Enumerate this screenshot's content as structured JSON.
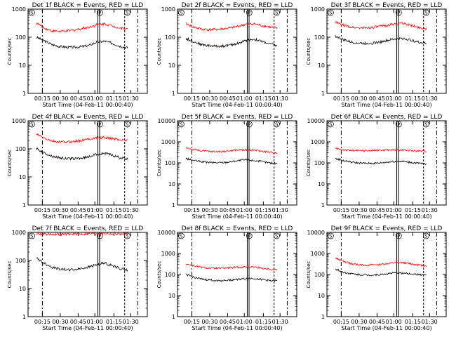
{
  "chart_data": [
    {
      "type": "line",
      "title": "Det 1f BLACK = Events, RED = LLD",
      "xlabel": "Start Time (04-Feb-11 00:00:40)",
      "ylabel": "Counts/sec",
      "y_scale": "log",
      "ylim": [
        1,
        1000
      ],
      "x_ticks": [
        "00:15",
        "00:30",
        "00:45",
        "01:00",
        "01:15",
        "01:30"
      ],
      "y_ticks": [
        "1",
        "10",
        "100",
        "1000"
      ],
      "markers": [
        "S",
        "P",
        "S"
      ],
      "series": [
        {
          "name": "BLACK = Events",
          "color": "#000000",
          "values": [
            100,
            75,
            55,
            47,
            44,
            44,
            46,
            52,
            68,
            72,
            60,
            48,
            42
          ]
        },
        {
          "name": "RED = LLD",
          "color": "#ff0000",
          "values": [
            320,
            210,
            170,
            160,
            165,
            180,
            205,
            230,
            280,
            300,
            250,
            210,
            195
          ]
        }
      ]
    },
    {
      "type": "line",
      "title": "Det 2f BLACK = Events, RED = LLD",
      "xlabel": "Start Time (04-Feb-11 00:00:40)",
      "ylabel": "Counts/sec",
      "y_scale": "log",
      "ylim": [
        1,
        1000
      ],
      "x_ticks": [
        "00:15",
        "00:30",
        "00:45",
        "01:00",
        "01:15",
        "01:30"
      ],
      "y_ticks": [
        "1",
        "10",
        "100",
        "1000"
      ],
      "markers": [
        "S",
        "P",
        "S"
      ],
      "series": [
        {
          "name": "BLACK = Events",
          "color": "#000000",
          "values": [
            90,
            70,
            55,
            50,
            48,
            49,
            53,
            62,
            78,
            85,
            70,
            58,
            50
          ]
        },
        {
          "name": "RED = LLD",
          "color": "#ff0000",
          "values": [
            300,
            230,
            195,
            185,
            190,
            200,
            215,
            250,
            290,
            300,
            260,
            230,
            210
          ]
        }
      ]
    },
    {
      "type": "line",
      "title": "Det 3f BLACK = Events, RED = LLD",
      "xlabel": "Start Time (04-Feb-11 00:00:40)",
      "ylabel": "Counts/sec",
      "y_scale": "log",
      "ylim": [
        1,
        1000
      ],
      "x_ticks": [
        "00:15",
        "00:30",
        "00:45",
        "01:00",
        "01:15",
        "01:30"
      ],
      "y_ticks": [
        "1",
        "10",
        "100",
        "1000"
      ],
      "markers": [
        "S",
        "P",
        "S"
      ],
      "series": [
        {
          "name": "BLACK = Events",
          "color": "#000000",
          "values": [
            110,
            82,
            68,
            62,
            60,
            62,
            68,
            78,
            88,
            90,
            78,
            66,
            60
          ]
        },
        {
          "name": "RED = LLD",
          "color": "#ff0000",
          "values": [
            340,
            270,
            230,
            215,
            215,
            225,
            245,
            270,
            300,
            310,
            260,
            220,
            200
          ]
        }
      ]
    },
    {
      "type": "line",
      "title": "Det 4f BLACK = Events, RED = LLD",
      "xlabel": "Start Time (04-Feb-11 00:00:40)",
      "ylabel": "Counts/sec",
      "y_scale": "log",
      "ylim": [
        1,
        1000
      ],
      "x_ticks": [
        "00:15",
        "00:30",
        "00:45",
        "01:00",
        "01:15",
        "01:30"
      ],
      "y_ticks": [
        "1",
        "10",
        "100",
        "1000"
      ],
      "markers": [
        "S",
        "P",
        "S"
      ],
      "series": [
        {
          "name": "BLACK = Events",
          "color": "#000000",
          "values": [
            100,
            72,
            55,
            48,
            45,
            45,
            47,
            53,
            65,
            70,
            58,
            48,
            42
          ]
        },
        {
          "name": "RED = LLD",
          "color": "#ff0000",
          "values": [
            330,
            240,
            190,
            175,
            175,
            185,
            200,
            225,
            250,
            250,
            230,
            210,
            200
          ]
        }
      ]
    },
    {
      "type": "line",
      "title": "Det 5f BLACK = Events, RED = LLD",
      "xlabel": "Start Time (04-Feb-11 00:00:40)",
      "ylabel": "Counts/sec",
      "y_scale": "log",
      "ylim": [
        1,
        10000
      ],
      "x_ticks": [
        "00:15",
        "00:30",
        "00:45",
        "01:00",
        "01:15",
        "01:30"
      ],
      "y_ticks": [
        "1",
        "10",
        "100",
        "1000",
        "10000"
      ],
      "markers": [
        "S",
        "P",
        "S"
      ],
      "series": [
        {
          "name": "BLACK = Events",
          "color": "#000000",
          "values": [
            160,
            130,
            115,
            105,
            102,
            105,
            115,
            130,
            140,
            130,
            115,
            100,
            95
          ]
        },
        {
          "name": "RED = LLD",
          "color": "#ff0000",
          "values": [
            520,
            430,
            380,
            350,
            340,
            350,
            380,
            410,
            420,
            400,
            360,
            320,
            300
          ]
        }
      ]
    },
    {
      "type": "line",
      "title": "Det 6f BLACK = Events, RED = LLD",
      "xlabel": "Start Time (04-Feb-11 00:00:40)",
      "ylabel": "Counts/sec",
      "y_scale": "log",
      "ylim": [
        1,
        10000
      ],
      "x_ticks": [
        "00:15",
        "00:30",
        "00:45",
        "01:00",
        "01:15",
        "01:30"
      ],
      "y_ticks": [
        "1",
        "10",
        "100",
        "1000",
        "10000"
      ],
      "markers": [
        "S",
        "P",
        "S"
      ],
      "series": [
        {
          "name": "BLACK = Events",
          "color": "#000000",
          "values": [
            160,
            130,
            110,
            100,
            95,
            95,
            100,
            110,
            120,
            115,
            105,
            95,
            90
          ]
        },
        {
          "name": "RED = LLD",
          "color": "#ff0000",
          "values": [
            480,
            420,
            390,
            380,
            380,
            390,
            400,
            410,
            410,
            400,
            380,
            370,
            360
          ]
        }
      ]
    },
    {
      "type": "line",
      "title": "Det 7f BLACK = Events, RED = LLD",
      "xlabel": "Start Time (04-Feb-11 00:00:40)",
      "ylabel": "Counts/sec",
      "y_scale": "log",
      "ylim": [
        1,
        1000
      ],
      "x_ticks": [
        "00:15",
        "00:30",
        "00:45",
        "01:00",
        "01:15",
        "01:30"
      ],
      "y_ticks": [
        "1",
        "10",
        "100",
        "1000"
      ],
      "markers": [
        "S",
        "P",
        "S"
      ],
      "series": [
        {
          "name": "BLACK = Events",
          "color": "#000000",
          "values": [
            120,
            80,
            58,
            50,
            47,
            47,
            52,
            60,
            72,
            80,
            65,
            52,
            45
          ]
        },
        {
          "name": "RED = LLD",
          "color": "#ff0000",
          "values": [
            900,
            870,
            860,
            850,
            860,
            870,
            880,
            900,
            920,
            930,
            900,
            880,
            860
          ]
        }
      ]
    },
    {
      "type": "line",
      "title": "Det 8f BLACK = Events, RED = LLD",
      "xlabel": "Start Time (04-Feb-11 00:00:40)",
      "ylabel": "Counts/sec",
      "y_scale": "log",
      "ylim": [
        1,
        10000
      ],
      "x_ticks": [
        "00:15",
        "00:30",
        "00:45",
        "01:00",
        "01:15",
        "01:30"
      ],
      "y_ticks": [
        "1",
        "10",
        "100",
        "1000",
        "10000"
      ],
      "markers": [
        "S",
        "P",
        "S"
      ],
      "series": [
        {
          "name": "BLACK = Events",
          "color": "#000000",
          "values": [
            100,
            75,
            60,
            55,
            52,
            52,
            55,
            60,
            65,
            65,
            58,
            52,
            50
          ]
        },
        {
          "name": "RED = LLD",
          "color": "#ff0000",
          "values": [
            320,
            260,
            220,
            200,
            195,
            200,
            210,
            220,
            230,
            230,
            200,
            180,
            170
          ]
        }
      ]
    },
    {
      "type": "line",
      "title": "Det 9f BLACK = Events, RED = LLD",
      "xlabel": "Start Time (04-Feb-11 00:00:40)",
      "ylabel": "Counts/sec",
      "y_scale": "log",
      "ylim": [
        1,
        10000
      ],
      "x_ticks": [
        "00:15",
        "00:30",
        "00:45",
        "01:00",
        "01:15",
        "01:30"
      ],
      "y_ticks": [
        "1",
        "10",
        "100",
        "1000",
        "10000"
      ],
      "markers": [
        "S",
        "P",
        "S"
      ],
      "series": [
        {
          "name": "BLACK = Events",
          "color": "#000000",
          "values": [
            180,
            130,
            110,
            100,
            95,
            95,
            100,
            110,
            120,
            115,
            105,
            100,
            95
          ]
        },
        {
          "name": "RED = LLD",
          "color": "#ff0000",
          "values": [
            600,
            420,
            330,
            290,
            280,
            285,
            300,
            330,
            360,
            360,
            320,
            280,
            260
          ]
        }
      ]
    }
  ]
}
